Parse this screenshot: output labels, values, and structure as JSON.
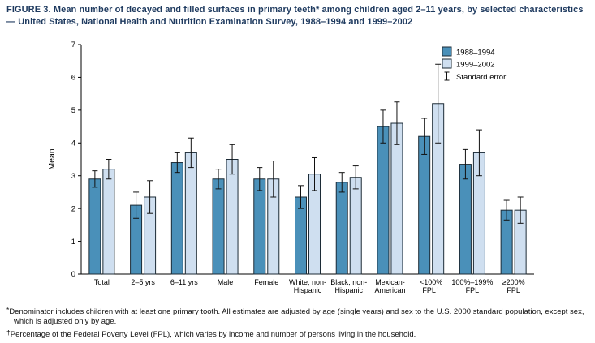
{
  "title": "FIGURE 3. Mean number of decayed and filled surfaces in primary teeth* among children aged 2–11 years, by selected characteristics — United States, National Health and Nutrition Examination Survey, 1988–1994 and 1999–2002",
  "chart_data": {
    "type": "bar",
    "title": "",
    "xlabel": "",
    "ylabel": "Mean",
    "ylim": [
      0,
      7
    ],
    "yticks": [
      0,
      1,
      2,
      3,
      4,
      5,
      6,
      7
    ],
    "grid": false,
    "legend": {
      "position": "top-right",
      "standard_error_label": "Standard error"
    },
    "categories": [
      "Total",
      "2–5 yrs",
      "6–11 yrs",
      "Male",
      "Female",
      "White, non-\nHispanic",
      "Black, non-\nHispanic",
      "Mexican-\nAmerican",
      "<100%\nFPL†",
      "100%–199%\nFPL",
      "≥200%\nFPL"
    ],
    "series": [
      {
        "name": "1988–1994",
        "color": "#4a90b9",
        "values": [
          2.9,
          2.1,
          3.4,
          2.9,
          2.9,
          2.35,
          2.8,
          4.5,
          4.2,
          3.35,
          1.95
        ],
        "errors": [
          0.25,
          0.4,
          0.3,
          0.3,
          0.35,
          0.35,
          0.3,
          0.5,
          0.55,
          0.45,
          0.3
        ]
      },
      {
        "name": "1999–2002",
        "color": "#cfdff0",
        "values": [
          3.2,
          2.35,
          3.7,
          3.5,
          2.9,
          3.05,
          2.95,
          4.6,
          5.2,
          3.7,
          1.95
        ],
        "errors": [
          0.3,
          0.5,
          0.45,
          0.45,
          0.55,
          0.5,
          0.35,
          0.65,
          1.2,
          0.7,
          0.4
        ]
      }
    ],
    "bar_border_color": "#1c2b36",
    "error_bar_color": "#111111"
  },
  "footnotes": [
    {
      "symbol": "*",
      "text": "Denominator includes children with at least one primary tooth. All estimates are adjusted by age (single years) and sex to the U.S. 2000 standard population, except sex, which is adjusted only by age."
    },
    {
      "symbol": "†",
      "text": "Percentage of the Federal Poverty Level (FPL), which varies by income and number of persons living in the household."
    }
  ]
}
